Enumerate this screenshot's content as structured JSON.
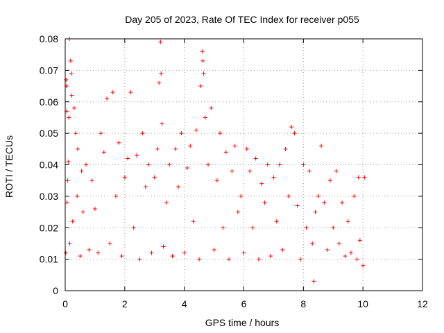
{
  "chart_data": {
    "type": "scatter",
    "title": "Day 205 of 2023, Rate Of TEC Index for receiver p055",
    "xlabel": "GPS time / hours",
    "ylabel": "ROTI / TECUs",
    "xlim": [
      0,
      12
    ],
    "ylim": [
      0,
      0.08
    ],
    "xticks": [
      0,
      2,
      4,
      6,
      8,
      10,
      12
    ],
    "xtick_labels": [
      "0",
      "2",
      "4",
      "6",
      "8",
      "10",
      "12"
    ],
    "yticks": [
      0,
      0.01,
      0.02,
      0.03,
      0.04,
      0.05,
      0.06,
      0.07,
      0.08
    ],
    "ytick_labels": [
      "0",
      "0.01",
      "0.02",
      "0.03",
      "0.04",
      "0.05",
      "0.06",
      "0.07",
      "0.08"
    ],
    "grid": true,
    "marker": "plus",
    "color": "#ff0000",
    "series": [
      {
        "points": [
          [
            0.02,
            0.012
          ],
          [
            0.03,
            0.067
          ],
          [
            0.04,
            0.065
          ],
          [
            0.06,
            0.028
          ],
          [
            0.05,
            0.057
          ],
          [
            0.08,
            0.035
          ],
          [
            0.1,
            0.041
          ],
          [
            0.12,
            0.055
          ],
          [
            0.14,
            0.08
          ],
          [
            0.15,
            0.015
          ],
          [
            0.18,
            0.073
          ],
          [
            0.2,
            0.069
          ],
          [
            0.22,
            0.062
          ],
          [
            0.25,
            0.022
          ],
          [
            0.3,
            0.058
          ],
          [
            0.35,
            0.05
          ],
          [
            0.4,
            0.03
          ],
          [
            0.42,
            0.045
          ],
          [
            0.5,
            0.011
          ],
          [
            0.55,
            0.038
          ],
          [
            0.6,
            0.025
          ],
          [
            0.7,
            0.04
          ],
          [
            0.8,
            0.013
          ],
          [
            0.9,
            0.035
          ],
          [
            1.0,
            0.026
          ],
          [
            1.1,
            0.012
          ],
          [
            1.2,
            0.05
          ],
          [
            1.3,
            0.044
          ],
          [
            1.4,
            0.061
          ],
          [
            1.5,
            0.015
          ],
          [
            1.6,
            0.063
          ],
          [
            1.7,
            0.03
          ],
          [
            1.8,
            0.047
          ],
          [
            1.9,
            0.011
          ],
          [
            2.0,
            0.036
          ],
          [
            2.1,
            0.042
          ],
          [
            2.2,
            0.063
          ],
          [
            2.3,
            0.02
          ],
          [
            2.4,
            0.043
          ],
          [
            2.5,
            0.01
          ],
          [
            2.6,
            0.05
          ],
          [
            2.7,
            0.033
          ],
          [
            2.8,
            0.04
          ],
          [
            2.9,
            0.012
          ],
          [
            3.0,
            0.036
          ],
          [
            3.1,
            0.045
          ],
          [
            3.15,
            0.066
          ],
          [
            3.2,
            0.079
          ],
          [
            3.22,
            0.069
          ],
          [
            3.25,
            0.053
          ],
          [
            3.3,
            0.014
          ],
          [
            3.4,
            0.028
          ],
          [
            3.5,
            0.04
          ],
          [
            3.6,
            0.011
          ],
          [
            3.7,
            0.045
          ],
          [
            3.8,
            0.033
          ],
          [
            3.9,
            0.05
          ],
          [
            4.0,
            0.012
          ],
          [
            4.1,
            0.039
          ],
          [
            4.2,
            0.046
          ],
          [
            4.3,
            0.022
          ],
          [
            4.4,
            0.051
          ],
          [
            4.5,
            0.01
          ],
          [
            4.55,
            0.065
          ],
          [
            4.6,
            0.076
          ],
          [
            4.62,
            0.073
          ],
          [
            4.65,
            0.069
          ],
          [
            4.7,
            0.055
          ],
          [
            4.8,
            0.04
          ],
          [
            4.9,
            0.058
          ],
          [
            5.0,
            0.013
          ],
          [
            5.1,
            0.035
          ],
          [
            5.2,
            0.05
          ],
          [
            5.3,
            0.02
          ],
          [
            5.4,
            0.044
          ],
          [
            5.5,
            0.01
          ],
          [
            5.6,
            0.038
          ],
          [
            5.7,
            0.046
          ],
          [
            5.8,
            0.025
          ],
          [
            5.9,
            0.03
          ],
          [
            6.0,
            0.012
          ],
          [
            6.1,
            0.045
          ],
          [
            6.2,
            0.038
          ],
          [
            6.3,
            0.02
          ],
          [
            6.4,
            0.042
          ],
          [
            6.5,
            0.01
          ],
          [
            6.6,
            0.034
          ],
          [
            6.7,
            0.028
          ],
          [
            6.8,
            0.04
          ],
          [
            6.9,
            0.011
          ],
          [
            7.0,
            0.036
          ],
          [
            7.1,
            0.022
          ],
          [
            7.2,
            0.04
          ],
          [
            7.3,
            0.013
          ],
          [
            7.4,
            0.045
          ],
          [
            7.5,
            0.03
          ],
          [
            7.6,
            0.052
          ],
          [
            7.7,
            0.05
          ],
          [
            7.8,
            0.027
          ],
          [
            7.9,
            0.01
          ],
          [
            8.0,
            0.04
          ],
          [
            8.1,
            0.02
          ],
          [
            8.2,
            0.038
          ],
          [
            8.3,
            0.015
          ],
          [
            8.35,
            0.003
          ],
          [
            8.4,
            0.025
          ],
          [
            8.5,
            0.03
          ],
          [
            8.6,
            0.046
          ],
          [
            8.7,
            0.028
          ],
          [
            8.8,
            0.013
          ],
          [
            8.9,
            0.035
          ],
          [
            9.0,
            0.02
          ],
          [
            9.1,
            0.038
          ],
          [
            9.2,
            0.015
          ],
          [
            9.3,
            0.028
          ],
          [
            9.4,
            0.011
          ],
          [
            9.5,
            0.022
          ],
          [
            9.6,
            0.012
          ],
          [
            9.7,
            0.03
          ],
          [
            9.8,
            0.01
          ],
          [
            9.85,
            0.036
          ],
          [
            9.9,
            0.016
          ],
          [
            10.0,
            0.008
          ],
          [
            10.05,
            0.036
          ]
        ]
      }
    ]
  }
}
